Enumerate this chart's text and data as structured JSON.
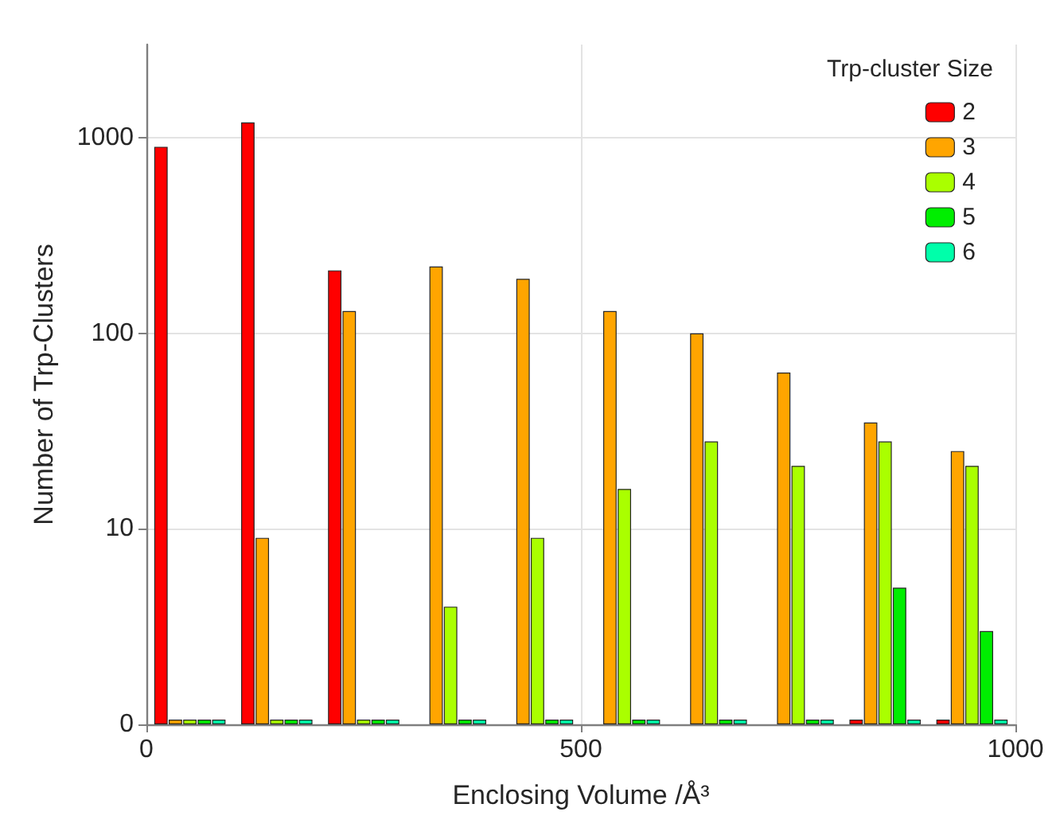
{
  "chart_data": {
    "type": "bar",
    "xlabel": "Enclosing Volume /Å³",
    "ylabel": "Number of Trp-Clusters",
    "legend_title": "Trp-cluster Size",
    "x": [
      50,
      150,
      250,
      350,
      450,
      550,
      650,
      750,
      850,
      950
    ],
    "series": [
      {
        "name": "2",
        "color": "#ff0000",
        "values": [
          900,
          1200,
          210,
          null,
          null,
          null,
          null,
          null,
          0,
          0
        ]
      },
      {
        "name": "3",
        "color": "#ffa500",
        "values": [
          0,
          9,
          130,
          220,
          190,
          130,
          100,
          63,
          35,
          25
        ]
      },
      {
        "name": "4",
        "color": "#aaff00",
        "values": [
          0,
          0,
          0,
          4,
          9,
          16,
          28,
          21,
          28,
          21
        ]
      },
      {
        "name": "5",
        "color": "#00ee00",
        "values": [
          0,
          0,
          0,
          0,
          0,
          0,
          0,
          0,
          5,
          3
        ]
      },
      {
        "name": "6",
        "color": "#00ffaa",
        "values": [
          0,
          0,
          0,
          0,
          0,
          0,
          0,
          0,
          0,
          0
        ]
      }
    ],
    "xlim": [
      0,
      1000
    ],
    "xticks": [
      0,
      500,
      1000
    ],
    "ylim": [
      0,
      3000
    ],
    "yticks": [
      0,
      10,
      100,
      1000
    ],
    "log": "y",
    "grid": true,
    "legend": "top right"
  }
}
